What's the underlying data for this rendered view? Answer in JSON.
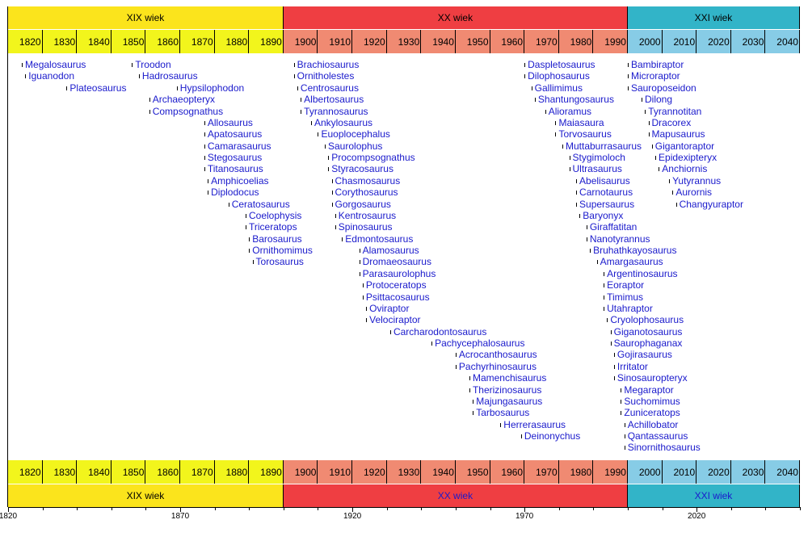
{
  "chart_data": {
    "type": "timeline",
    "xlim": [
      1820,
      2050
    ],
    "axis_labels": [
      "1820",
      "1870",
      "1920",
      "1970",
      "2020"
    ],
    "centuries": [
      {
        "label": "XIX wiek",
        "start": 1820,
        "end": 1900,
        "color": "#fbe41c",
        "decade_color": "#f2f51c",
        "bottom_text_color": "#000000"
      },
      {
        "label": "XX wiek",
        "start": 1900,
        "end": 2000,
        "color": "#ef3e42",
        "decade_color": "#f08a72",
        "bottom_text_color": "#1a1acc"
      },
      {
        "label": "XXI wiek",
        "start": 2000,
        "end": 2050,
        "color": "#32b4c8",
        "decade_color": "#87cce6",
        "bottom_text_color": "#1a1acc"
      }
    ],
    "decades": [
      "1820",
      "1830",
      "1840",
      "1850",
      "1860",
      "1870",
      "1880",
      "1890",
      "1900",
      "1910",
      "1920",
      "1930",
      "1940",
      "1950",
      "1960",
      "1970",
      "1980",
      "1990",
      "2000",
      "2010",
      "2020",
      "2030",
      "2040"
    ],
    "item_color": "#1a1acc",
    "groups": [
      [
        {
          "name": "Megalosaurus",
          "year": 1824
        },
        {
          "name": "Iguanodon",
          "year": 1825
        },
        {
          "name": "Plateosaurus",
          "year": 1837
        }
      ],
      [
        {
          "name": "Troodon",
          "year": 1856
        },
        {
          "name": "Hadrosaurus",
          "year": 1858
        },
        {
          "name": "Hypsilophodon",
          "year": 1869
        },
        {
          "name": "Archaeopteryx",
          "year": 1861
        },
        {
          "name": "Compsognathus",
          "year": 1861
        },
        {
          "name": "Allosaurus",
          "year": 1877
        },
        {
          "name": "Apatosaurus",
          "year": 1877
        },
        {
          "name": "Camarasaurus",
          "year": 1877
        },
        {
          "name": "Stegosaurus",
          "year": 1877
        },
        {
          "name": "Titanosaurus",
          "year": 1877
        },
        {
          "name": "Amphicoelias",
          "year": 1878
        },
        {
          "name": "Diplodocus",
          "year": 1878
        },
        {
          "name": "Ceratosaurus",
          "year": 1884
        },
        {
          "name": "Coelophysis",
          "year": 1889
        },
        {
          "name": "Triceratops",
          "year": 1889
        },
        {
          "name": "Barosaurus",
          "year": 1890
        },
        {
          "name": "Ornithomimus",
          "year": 1890
        },
        {
          "name": "Torosaurus",
          "year": 1891
        }
      ],
      [
        {
          "name": "Brachiosaurus",
          "year": 1903
        },
        {
          "name": "Ornitholestes",
          "year": 1903
        },
        {
          "name": "Centrosaurus",
          "year": 1904
        },
        {
          "name": "Albertosaurus",
          "year": 1905
        },
        {
          "name": "Tyrannosaurus",
          "year": 1905
        },
        {
          "name": "Ankylosaurus",
          "year": 1908
        },
        {
          "name": "Euoplocephalus",
          "year": 1910
        },
        {
          "name": "Saurolophus",
          "year": 1912
        },
        {
          "name": "Procompsognathus",
          "year": 1913
        },
        {
          "name": "Styracosaurus",
          "year": 1913
        },
        {
          "name": "Chasmosaurus",
          "year": 1914
        },
        {
          "name": "Corythosaurus",
          "year": 1914
        },
        {
          "name": "Gorgosaurus",
          "year": 1914
        },
        {
          "name": "Kentrosaurus",
          "year": 1915
        },
        {
          "name": "Spinosaurus",
          "year": 1915
        },
        {
          "name": "Edmontosaurus",
          "year": 1917
        },
        {
          "name": "Alamosaurus",
          "year": 1922
        },
        {
          "name": "Dromaeosaurus",
          "year": 1922
        },
        {
          "name": "Parasaurolophus",
          "year": 1922
        },
        {
          "name": "Protoceratops",
          "year": 1923
        },
        {
          "name": "Psittacosaurus",
          "year": 1923
        },
        {
          "name": "Oviraptor",
          "year": 1924
        },
        {
          "name": "Velociraptor",
          "year": 1924
        },
        {
          "name": "Carcharodontosaurus",
          "year": 1931
        },
        {
          "name": "Pachycephalosaurus",
          "year": 1943
        },
        {
          "name": "Acrocanthosaurus",
          "year": 1950
        },
        {
          "name": "Pachyrhinosaurus",
          "year": 1950
        },
        {
          "name": "Mamenchisaurus",
          "year": 1954
        },
        {
          "name": "Therizinosaurus",
          "year": 1954
        },
        {
          "name": "Majungasaurus",
          "year": 1955
        },
        {
          "name": "Tarbosaurus",
          "year": 1955
        },
        {
          "name": "Herrerasaurus",
          "year": 1963
        },
        {
          "name": "Deinonychus",
          "year": 1969
        }
      ],
      [
        {
          "name": "Daspletosaurus",
          "year": 1970
        },
        {
          "name": "Dilophosaurus",
          "year": 1970
        },
        {
          "name": "Gallimimus",
          "year": 1972
        },
        {
          "name": "Shantungosaurus",
          "year": 1973
        },
        {
          "name": "Alioramus",
          "year": 1976
        },
        {
          "name": "Maiasaura",
          "year": 1979
        },
        {
          "name": "Torvosaurus",
          "year": 1979
        },
        {
          "name": "Muttaburrasaurus",
          "year": 1981
        },
        {
          "name": "Stygimoloch",
          "year": 1983
        },
        {
          "name": "Ultrasaurus",
          "year": 1983
        },
        {
          "name": "Abelisaurus",
          "year": 1985
        },
        {
          "name": "Carnotaurus",
          "year": 1985
        },
        {
          "name": "Supersaurus",
          "year": 1985
        },
        {
          "name": "Baryonyx",
          "year": 1986
        },
        {
          "name": "Giraffatitan",
          "year": 1988
        },
        {
          "name": "Nanotyrannus",
          "year": 1988
        },
        {
          "name": "Bruhathkayosaurus",
          "year": 1989
        },
        {
          "name": "Amargasaurus",
          "year": 1991
        },
        {
          "name": "Argentinosaurus",
          "year": 1993
        },
        {
          "name": "Eoraptor",
          "year": 1993
        },
        {
          "name": "Timimus",
          "year": 1993
        },
        {
          "name": "Utahraptor",
          "year": 1993
        },
        {
          "name": "Cryolophosaurus",
          "year": 1994
        },
        {
          "name": "Giganotosaurus",
          "year": 1995
        },
        {
          "name": "Saurophaganax",
          "year": 1995
        },
        {
          "name": "Gojirasaurus",
          "year": 1996
        },
        {
          "name": "Irritator",
          "year": 1996
        },
        {
          "name": "Sinosauropteryx",
          "year": 1996
        },
        {
          "name": "Megaraptor",
          "year": 1998
        },
        {
          "name": "Suchomimus",
          "year": 1998
        },
        {
          "name": "Zuniceratops",
          "year": 1998
        },
        {
          "name": "Achillobator",
          "year": 1999
        },
        {
          "name": "Qantassaurus",
          "year": 1999
        },
        {
          "name": "Sinornithosaurus",
          "year": 1999
        }
      ],
      [
        {
          "name": "Bambiraptor",
          "year": 2000
        },
        {
          "name": "Microraptor",
          "year": 2000
        },
        {
          "name": "Sauroposeidon",
          "year": 2000
        },
        {
          "name": "Dilong",
          "year": 2004
        },
        {
          "name": "Tyrannotitan",
          "year": 2005
        },
        {
          "name": "Dracorex",
          "year": 2006
        },
        {
          "name": "Mapusaurus",
          "year": 2006
        },
        {
          "name": "Gigantoraptor",
          "year": 2007
        },
        {
          "name": "Epidexipteryx",
          "year": 2008
        },
        {
          "name": "Anchiornis",
          "year": 2009
        },
        {
          "name": "Yutyrannus",
          "year": 2012
        },
        {
          "name": "Aurornis",
          "year": 2013
        },
        {
          "name": "Changyuraptor",
          "year": 2014
        }
      ]
    ]
  }
}
